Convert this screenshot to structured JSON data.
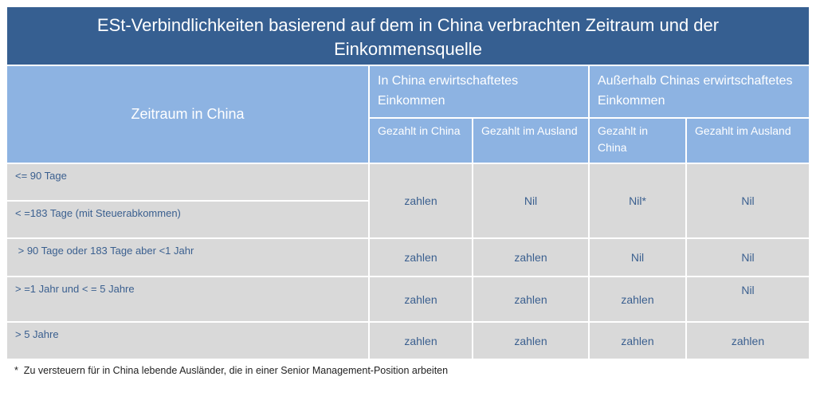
{
  "title": "ESt-Verbindlichkeiten basierend auf dem in China verbrachten Zeitraum und der Einkommensquelle",
  "header": {
    "period": "Zeitraum in China",
    "group_china": "In China erwirtschaftetes Einkommen",
    "group_abroad": "Außerhalb Chinas erwirtschaftetes Einkommen",
    "sub": [
      "Gezahlt in China",
      "Gezahlt im Ausland",
      "Gezahlt in China",
      "Gezahlt im Ausland"
    ]
  },
  "rows": [
    {
      "labels": [
        "<= 90 Tage",
        "< =183 Tage (mit Steuerabkommen)"
      ],
      "values": [
        "zahlen",
        "Nil",
        "Nil*",
        "Nil"
      ]
    },
    {
      "labels": [
        " > 90 Tage oder 183 Tage aber <1 Jahr"
      ],
      "values": [
        "zahlen",
        "zahlen",
        "Nil",
        "Nil"
      ]
    },
    {
      "labels": [
        "> =1 Jahr und < = 5 Jahre"
      ],
      "values": [
        "zahlen",
        "zahlen",
        "zahlen",
        "Nil"
      ]
    },
    {
      "labels": [
        "> 5 Jahre"
      ],
      "values": [
        "zahlen",
        "zahlen",
        "zahlen",
        "zahlen"
      ]
    }
  ],
  "footnote": "*  Zu versteuern für in China lebende Ausländer, die in einer Senior Management-Position arbeiten",
  "colors": {
    "title_bg": "#365f91",
    "header_bg": "#8db3e2",
    "body_bg": "#d9d9d9",
    "body_text": "#3a5f8f"
  }
}
